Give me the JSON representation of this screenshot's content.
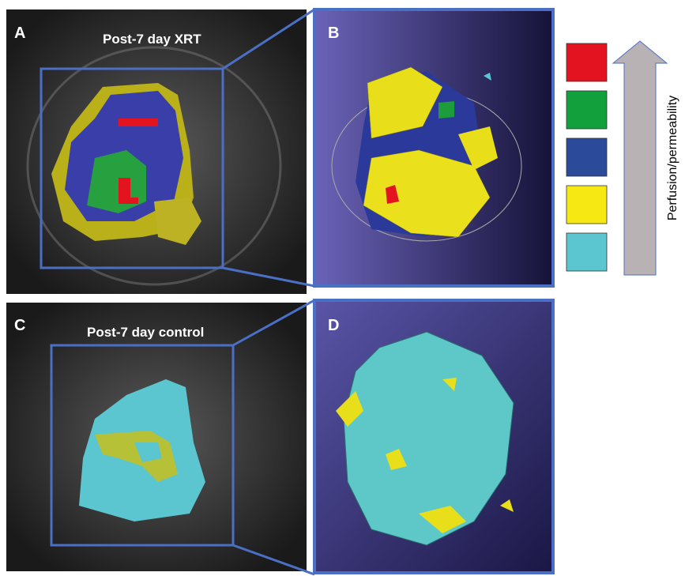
{
  "panels": [
    {
      "letter": "A",
      "title": "Post-7 day XRT"
    },
    {
      "letter": "B"
    },
    {
      "letter": "C",
      "title": "Post-7 day control"
    },
    {
      "letter": "D"
    }
  ],
  "legend": {
    "label": "Perfusion/permeability",
    "colors": [
      "#e3141f",
      "#12a03c",
      "#2b4a9a",
      "#f6e813",
      "#5bc6cf"
    ]
  }
}
